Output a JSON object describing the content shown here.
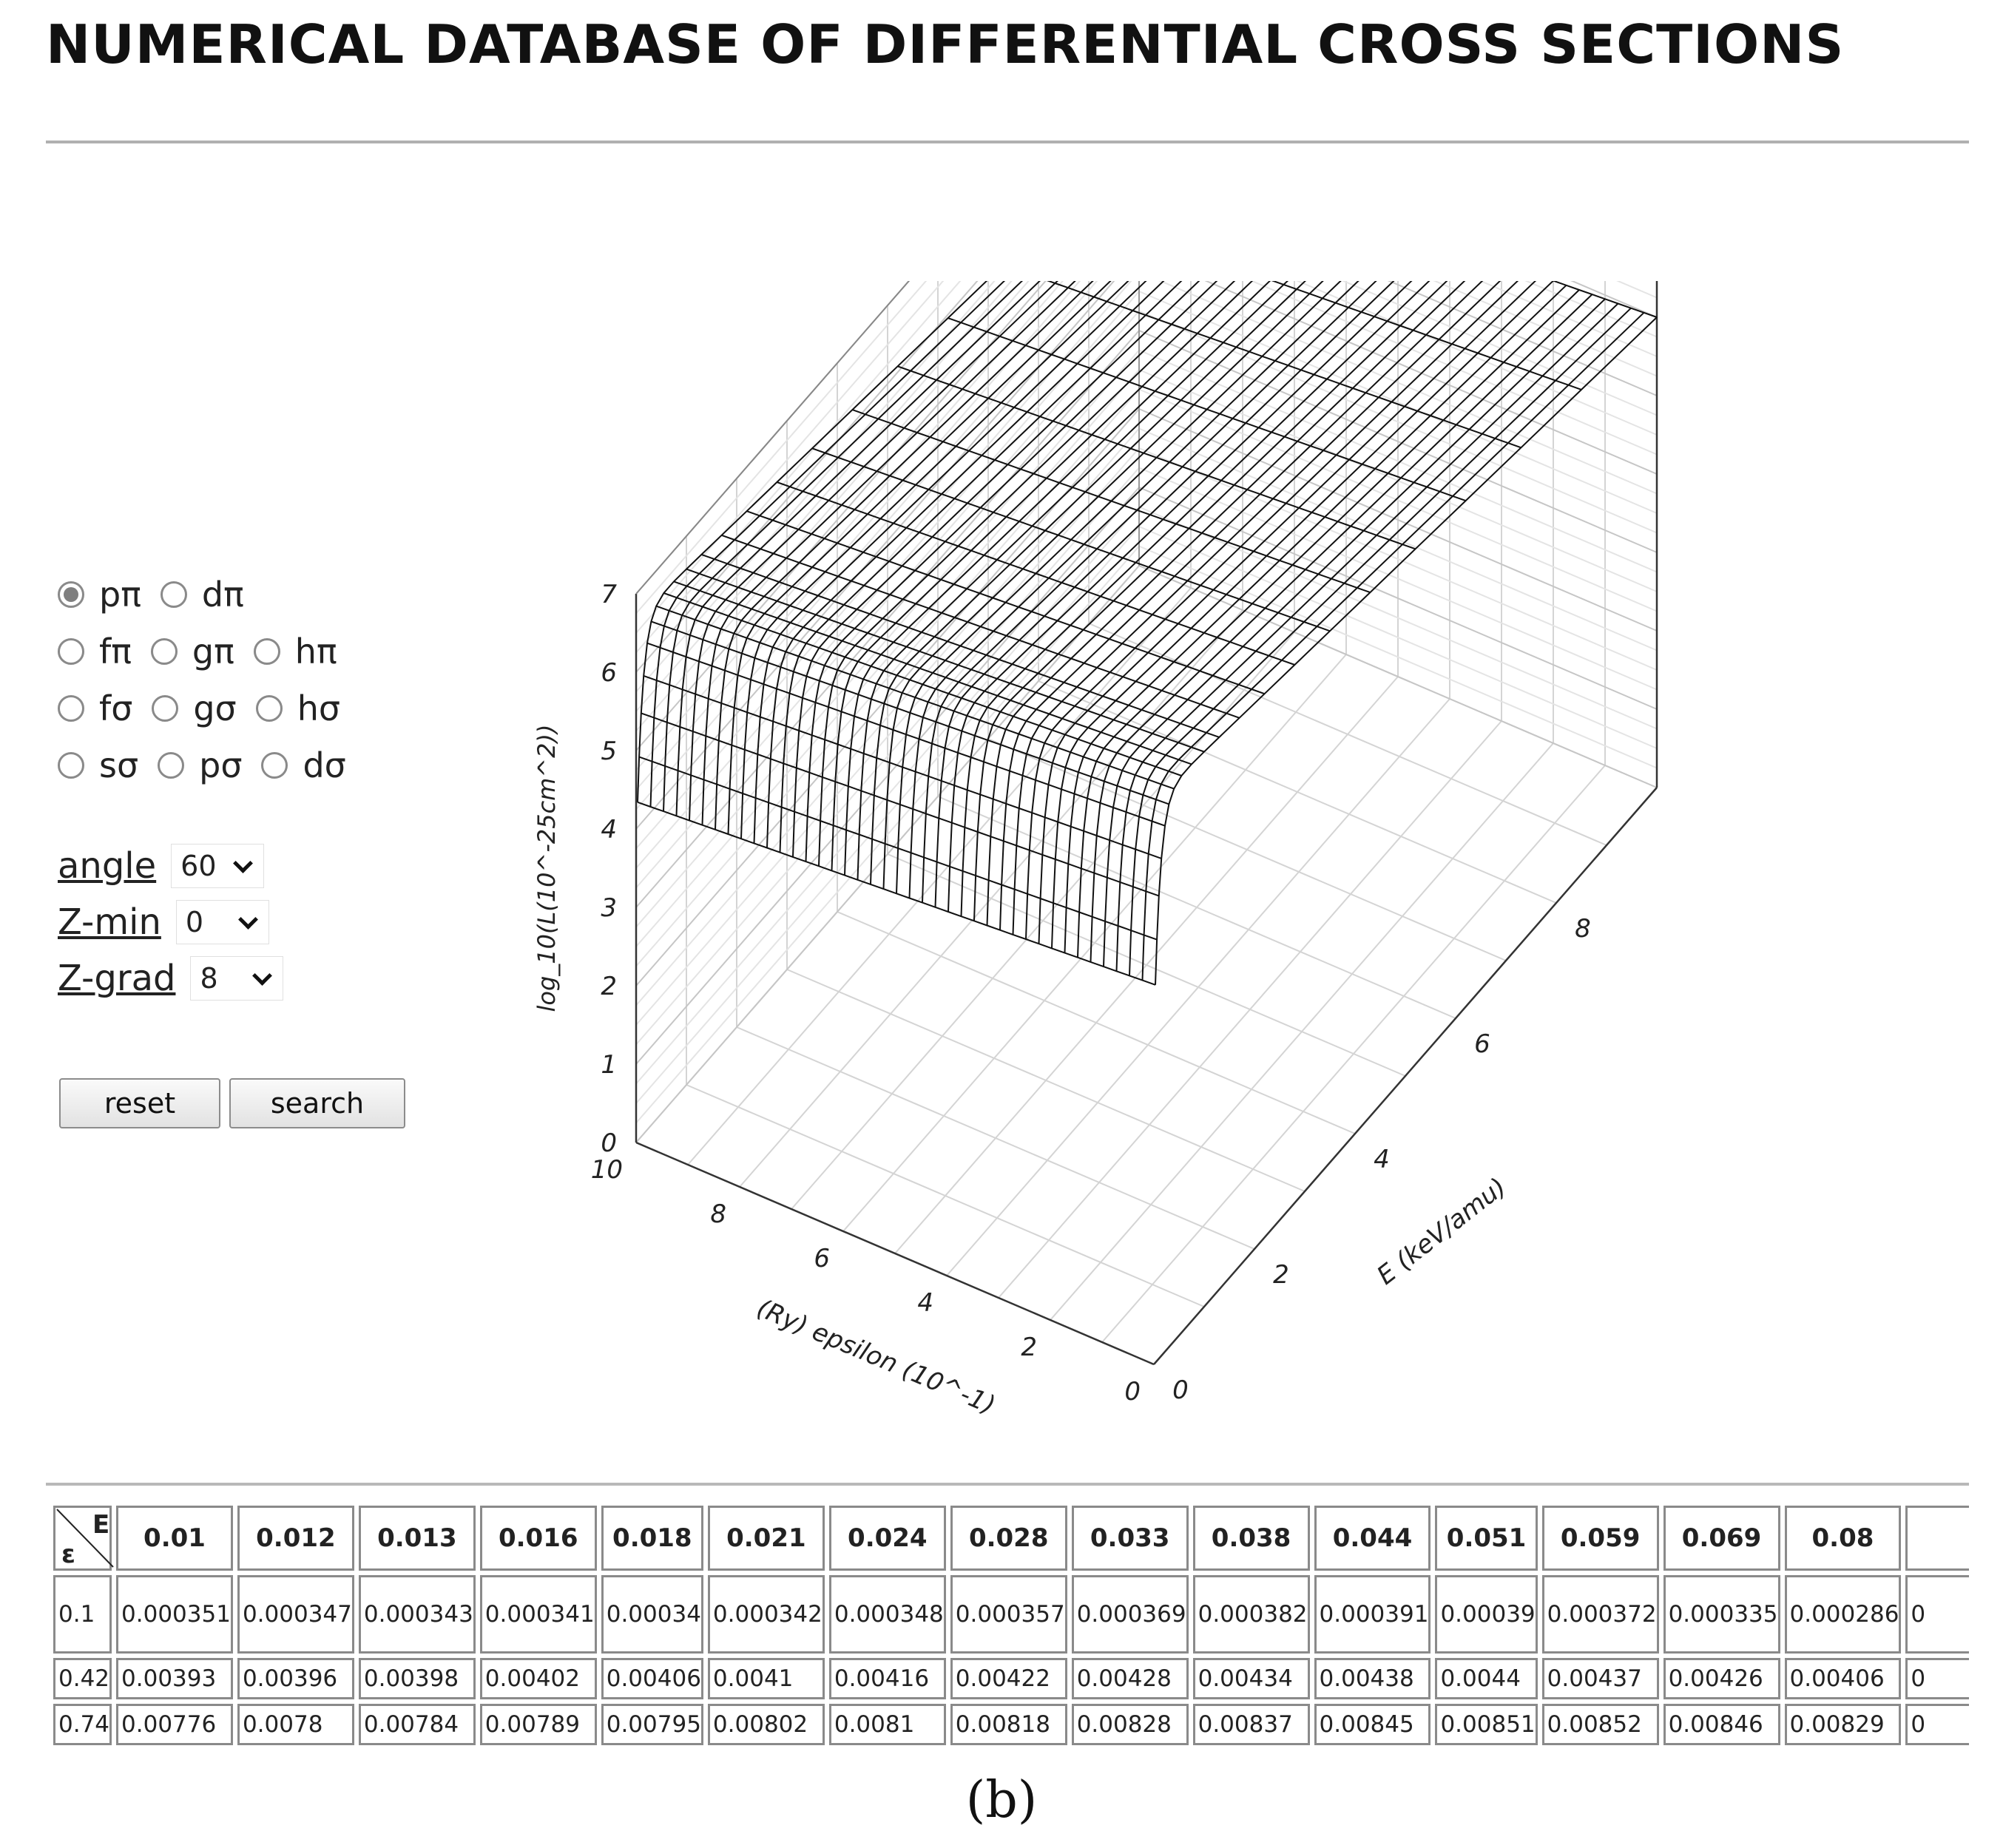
{
  "page": {
    "title": "NUMERICAL DATABASE OF DIFFERENTIAL CROSS SECTIONS",
    "caption": "(b)"
  },
  "radios": [
    [
      {
        "label": "pπ",
        "checked": true
      },
      {
        "label": "dπ",
        "checked": false
      }
    ],
    [
      {
        "label": "fπ",
        "checked": false
      },
      {
        "label": "gπ",
        "checked": false
      },
      {
        "label": "hπ",
        "checked": false
      }
    ],
    [
      {
        "label": "fσ",
        "checked": false
      },
      {
        "label": "gσ",
        "checked": false
      },
      {
        "label": "hσ",
        "checked": false
      }
    ],
    [
      {
        "label": "sσ",
        "checked": false
      },
      {
        "label": "pσ",
        "checked": false
      },
      {
        "label": "dσ",
        "checked": false
      }
    ]
  ],
  "selects": {
    "angle": {
      "label": "angle",
      "value": "60"
    },
    "zmin": {
      "label": "Z-min",
      "value": "0"
    },
    "zgrad": {
      "label": "Z-grad",
      "value": "8"
    }
  },
  "buttons": {
    "reset": "reset",
    "search": "search"
  },
  "plot": {
    "zlabel": "log_10(L(10^-25cm^2))",
    "xlabel": "(Ry) epsilon (10^-1)",
    "ylabel": "E (keV/amu)",
    "z_ticks": [
      "0",
      "1",
      "2",
      "3",
      "4",
      "5",
      "6",
      "7"
    ],
    "eps_ticks": [
      "0",
      "2",
      "4",
      "6",
      "8",
      "10"
    ],
    "e_ticks": [
      "0",
      "2",
      "4",
      "6",
      "8"
    ],
    "eps_range": [
      0,
      10
    ],
    "e_range": [
      0,
      10
    ],
    "z_range": [
      0,
      7
    ],
    "grid": true,
    "type": "surface-wireframe"
  },
  "table": {
    "corner_top": "E",
    "corner_bottom": "ε",
    "headers": [
      "0.01",
      "0.012",
      "0.013",
      "0.016",
      "0.018",
      "0.021",
      "0.024",
      "0.028",
      "0.033",
      "0.038",
      "0.044",
      "0.051",
      "0.059",
      "0.069",
      "0.08",
      ""
    ],
    "rows": [
      {
        "eps": "0.1",
        "values": [
          "0.000351",
          "0.000347",
          "0.000343",
          "0.000341",
          "0.00034",
          "0.000342",
          "0.000348",
          "0.000357",
          "0.000369",
          "0.000382",
          "0.000391",
          "0.00039",
          "0.000372",
          "0.000335",
          "0.000286",
          "0"
        ]
      },
      {
        "eps": "0.42",
        "values": [
          "0.00393",
          "0.00396",
          "0.00398",
          "0.00402",
          "0.00406",
          "0.0041",
          "0.00416",
          "0.00422",
          "0.00428",
          "0.00434",
          "0.00438",
          "0.0044",
          "0.00437",
          "0.00426",
          "0.00406",
          "0"
        ]
      },
      {
        "eps": "0.74",
        "values": [
          "0.00776",
          "0.0078",
          "0.00784",
          "0.00789",
          "0.00795",
          "0.00802",
          "0.0081",
          "0.00818",
          "0.00828",
          "0.00837",
          "0.00845",
          "0.00851",
          "0.00852",
          "0.00846",
          "0.00829",
          "0"
        ]
      }
    ]
  }
}
